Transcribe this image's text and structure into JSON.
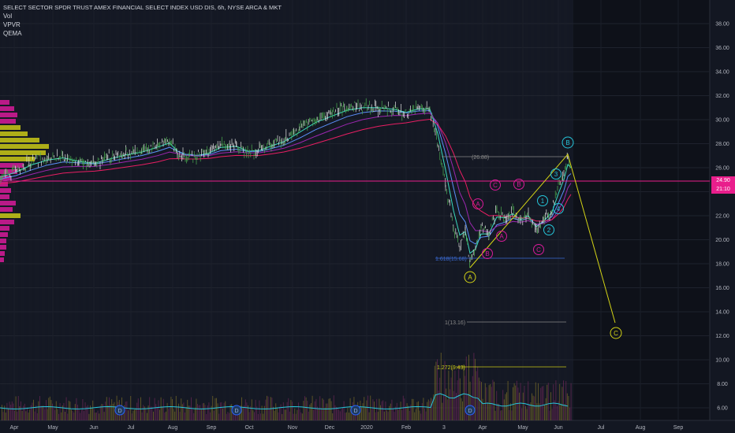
{
  "header": {
    "title": "SELECT SECTOR SPDR TRUST AMEX FINANCIAL SELECT INDEX USD DIS, 6h, NYSE ARCA & MKT",
    "indicators": [
      "Vol",
      "VPVR",
      "QEMA"
    ]
  },
  "price_axis": {
    "ticks": [
      "38.00",
      "36.00",
      "34.00",
      "32.00",
      "30.00",
      "28.00",
      "26.00",
      "24.00",
      "22.00",
      "20.00",
      "18.00",
      "16.00",
      "14.00",
      "12.00",
      "10.00",
      "8.00",
      "6.00"
    ],
    "last_price": "24.90",
    "countdown": "21:10"
  },
  "time_axis": {
    "labels": [
      "Apr",
      "May",
      "Jun",
      "Jul",
      "Aug",
      "Sep",
      "Oct",
      "Nov",
      "Dec",
      "2020",
      "Feb",
      "3",
      "Apr",
      "May",
      "Jun",
      "Jul",
      "Aug",
      "Sep"
    ]
  },
  "fib_labels": [
    "1.618(15.68)",
    "(26.88)",
    "1(13.16)",
    "1.272(9.43)"
  ],
  "wave_labels": {
    "yellow": [
      "A",
      "B",
      "C"
    ],
    "magenta": [
      "A",
      "B",
      "C",
      "A",
      "B",
      "C"
    ],
    "cyan": [
      "1",
      "2",
      "3",
      "4"
    ]
  },
  "dividend_markers": [
    "D",
    "D",
    "D",
    "D",
    "D"
  ],
  "colors": {
    "background": "#131722",
    "grid": "#1e222d",
    "candle_up": "#4caf50",
    "candle_down": "#e6e6e6",
    "ema_fast": "#3bdcc0",
    "ema_mid": "#5b8ff9",
    "ema_slow": "#9c27b0",
    "ema_long": "#e91e63",
    "price_line": "#e91e8c",
    "wave_yellow": "#d4d416",
    "wave_magenta": "#d81b9a",
    "wave_cyan": "#26c6da"
  }
}
